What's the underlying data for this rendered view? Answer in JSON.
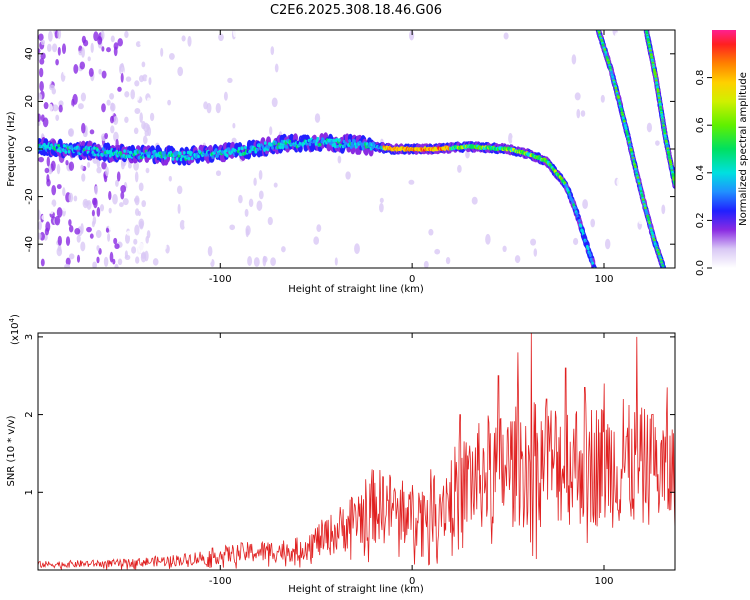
{
  "title": "C2E6.2025.308.18.46.G06",
  "chart_data": [
    {
      "type": "heatmap",
      "name": "spectrogram",
      "xlabel": "Height of straight line (km)",
      "ylabel": "Frequency (Hz)",
      "xlim": [
        -195,
        137
      ],
      "ylim": [
        -50,
        50
      ],
      "xticks": [
        -100,
        0,
        100
      ],
      "xtick_labels": [
        "-100",
        "0",
        "100"
      ],
      "yticks": [
        -40,
        -20,
        0,
        20,
        40
      ],
      "ytick_labels": [
        "-40",
        "-20",
        "0",
        "20",
        "40"
      ],
      "ridges": [
        {
          "name": "main-trace",
          "points": [
            [
              -195,
              1
            ],
            [
              -150,
              -2
            ],
            [
              -120,
              -3
            ],
            [
              -90,
              -1
            ],
            [
              -70,
              2
            ],
            [
              -50,
              3
            ],
            [
              -30,
              2
            ],
            [
              -10,
              0
            ],
            [
              10,
              0
            ],
            [
              30,
              1
            ],
            [
              50,
              0
            ],
            [
              60,
              -2
            ],
            [
              70,
              -5
            ],
            [
              80,
              -15
            ],
            [
              85,
              -25
            ],
            [
              90,
              -38
            ],
            [
              95,
              -50
            ]
          ]
        },
        {
          "name": "steep-trace-1",
          "points": [
            [
              97,
              50
            ],
            [
              103,
              35
            ],
            [
              108,
              20
            ],
            [
              114,
              0
            ],
            [
              120,
              -20
            ],
            [
              126,
              -38
            ],
            [
              131,
              -50
            ]
          ]
        },
        {
          "name": "steep-trace-2",
          "points": [
            [
              122,
              50
            ],
            [
              127,
              30
            ],
            [
              132,
              5
            ],
            [
              137,
              -15
            ]
          ]
        }
      ],
      "colorbar": {
        "label": "Normalized spectral amplitude",
        "min": 0.0,
        "max": 1.0,
        "ticks": [
          0.0,
          0.2,
          0.4,
          0.6,
          0.8
        ],
        "tick_labels": [
          "0.0",
          "0.2",
          "0.4",
          "0.6",
          "0.8"
        ]
      }
    },
    {
      "type": "line",
      "name": "snr",
      "xlabel": "Height of straight line (km)",
      "ylabel": "SNR (10 * v/v)",
      "scale_label": "(x10",
      "scale_exp": "4",
      "scale_close": ")",
      "xlim": [
        -195,
        137
      ],
      "ylim": [
        0,
        3.05
      ],
      "xticks": [
        -100,
        0,
        100
      ],
      "xtick_labels": [
        "-100",
        "0",
        "100"
      ],
      "yticks": [
        1,
        2,
        3
      ],
      "ytick_labels": [
        "1",
        "2",
        "3"
      ],
      "color": "#e02020",
      "envelope": [
        [
          -195,
          0.08
        ],
        [
          -150,
          0.1
        ],
        [
          -120,
          0.15
        ],
        [
          -90,
          0.25
        ],
        [
          -60,
          0.3
        ],
        [
          -40,
          0.55
        ],
        [
          -20,
          0.95
        ],
        [
          -10,
          0.9
        ],
        [
          0,
          0.8
        ],
        [
          15,
          1.0
        ],
        [
          25,
          1.2
        ],
        [
          40,
          1.45
        ],
        [
          60,
          1.55
        ],
        [
          80,
          1.6
        ],
        [
          100,
          1.55
        ],
        [
          120,
          1.5
        ],
        [
          137,
          1.4
        ]
      ],
      "peaks": [
        [
          -30,
          0.85
        ],
        [
          -15,
          1.2
        ],
        [
          -5,
          1.15
        ],
        [
          25,
          2.0
        ],
        [
          30,
          1.6
        ],
        [
          45,
          2.5
        ],
        [
          55,
          2.8
        ],
        [
          62,
          3.05
        ],
        [
          70,
          2.2
        ],
        [
          80,
          2.6
        ],
        [
          90,
          2.35
        ],
        [
          100,
          2.4
        ],
        [
          110,
          2.2
        ],
        [
          117,
          3.0
        ],
        [
          125,
          2.0
        ],
        [
          133,
          2.35
        ]
      ]
    }
  ],
  "colors": {
    "frame": "#000000",
    "snr_line": "#e02020"
  }
}
